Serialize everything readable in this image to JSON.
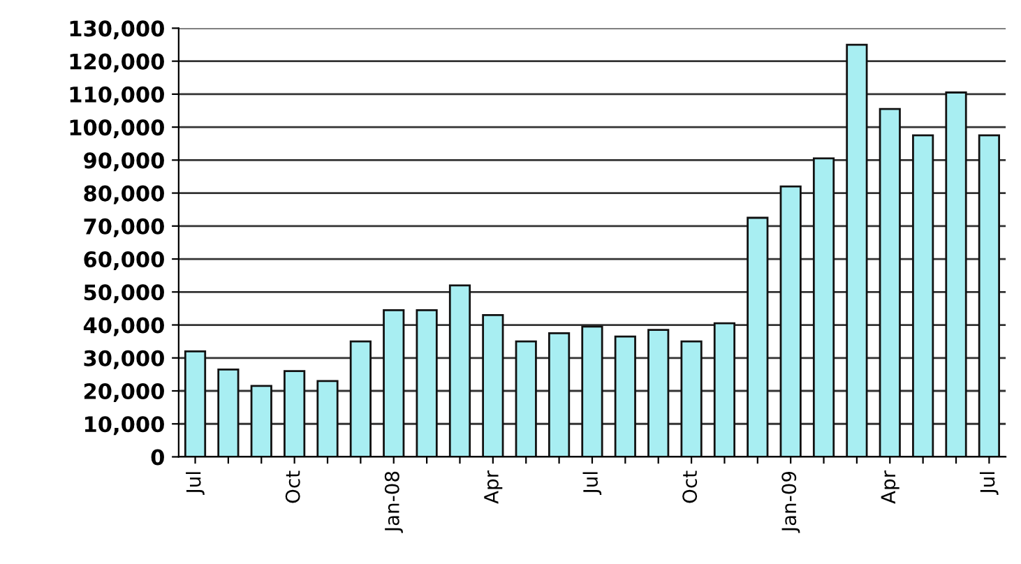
{
  "chart_data": {
    "type": "bar",
    "categories": [
      "Jul",
      null,
      null,
      "Oct",
      null,
      null,
      "Jan-08",
      null,
      null,
      "Apr",
      null,
      null,
      "Jul",
      null,
      null,
      "Oct",
      null,
      null,
      "Jan-09",
      null,
      null,
      "Apr",
      null,
      null,
      "Jul"
    ],
    "values": [
      32000,
      26500,
      21500,
      26000,
      23000,
      35000,
      44500,
      44500,
      52000,
      43000,
      35000,
      37500,
      39500,
      36500,
      38500,
      35000,
      40500,
      72500,
      82000,
      90500,
      125000,
      105500,
      97500,
      110500,
      97500
    ],
    "color": "#a8eef2",
    "ylim": [
      0,
      130000
    ],
    "yticks": [
      {
        "value": 0,
        "label": "0"
      },
      {
        "value": 10000,
        "label": "10,000"
      },
      {
        "value": 20000,
        "label": "20,000"
      },
      {
        "value": 30000,
        "label": "30,000"
      },
      {
        "value": 40000,
        "label": "40,000"
      },
      {
        "value": 50000,
        "label": "50,000"
      },
      {
        "value": 60000,
        "label": "60,000"
      },
      {
        "value": 70000,
        "label": "70,000"
      },
      {
        "value": 80000,
        "label": "80,000"
      },
      {
        "value": 90000,
        "label": "90,000"
      },
      {
        "value": 100000,
        "label": "100,000"
      },
      {
        "value": 110000,
        "label": "110,000"
      },
      {
        "value": 120000,
        "label": "120,000"
      },
      {
        "value": 130000,
        "label": "130,000"
      }
    ],
    "grid": "y"
  }
}
